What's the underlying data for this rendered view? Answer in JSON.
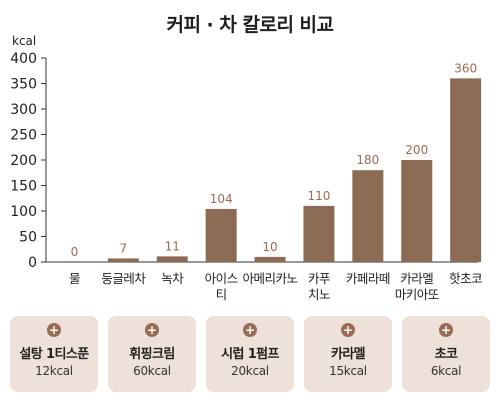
{
  "title": "커피 · 차 칼로리 비교",
  "chart_data": {
    "type": "bar",
    "title": "커피 · 차 칼로리 비교",
    "ylabel": "kcal",
    "ylim": [
      0,
      400
    ],
    "yticks": [
      0,
      50,
      100,
      150,
      200,
      250,
      300,
      350,
      400
    ],
    "grid": false,
    "categories": [
      [
        "물"
      ],
      [
        "둥글레차"
      ],
      [
        "녹차"
      ],
      [
        "아이스",
        "티"
      ],
      [
        "아메리카노"
      ],
      [
        "카푸",
        "치노"
      ],
      [
        "카페라떼"
      ],
      [
        "카라멜",
        "마키아또"
      ],
      [
        "핫초코"
      ]
    ],
    "values": [
      0,
      7,
      11,
      104,
      10,
      110,
      180,
      200,
      360
    ],
    "bar_color": "#8c6b55",
    "label_color": "#9b6b55"
  },
  "addons": [
    {
      "name": "설탕 1티스푼",
      "calories": "12kcal"
    },
    {
      "name": "휘핑크림",
      "calories": "60kcal"
    },
    {
      "name": "시럽 1펌프",
      "calories": "20kcal"
    },
    {
      "name": "카라멜",
      "calories": "15kcal"
    },
    {
      "name": "초코",
      "calories": "6kcal"
    }
  ],
  "addon_icon": "plus-icon",
  "addon_icon_glyph": "+"
}
